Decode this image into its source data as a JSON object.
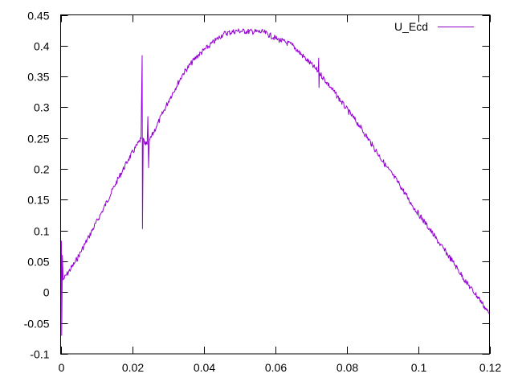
{
  "chart_data": {
    "type": "line",
    "title": "",
    "xlabel": "",
    "ylabel": "",
    "xlim": [
      0,
      0.12
    ],
    "ylim": [
      -0.1,
      0.45
    ],
    "grid": false,
    "legend_placement": "top-right",
    "x_ticks": [
      "0",
      "0.02",
      "0.04",
      "0.06",
      "0.08",
      "0.1",
      "0.12"
    ],
    "x_tick_values": [
      0,
      0.02,
      0.04,
      0.06,
      0.08,
      0.1,
      0.12
    ],
    "y_ticks": [
      "-0.1",
      "-0.05",
      "0",
      "0.05",
      "0.1",
      "0.15",
      "0.2",
      "0.25",
      "0.3",
      "0.35",
      "0.4",
      "0.45"
    ],
    "y_tick_values": [
      -0.1,
      -0.05,
      0,
      0.05,
      0.1,
      0.15,
      0.2,
      0.25,
      0.3,
      0.35,
      0.4,
      0.45
    ],
    "series": [
      {
        "name": "U_Ecd",
        "color": "#9400d3",
        "x": [
          0,
          0.0002,
          0.0003,
          0.0005,
          0.0007,
          0.0041,
          0.0079,
          0.0116,
          0.0153,
          0.019,
          0.0225,
          0.0228,
          0.0229,
          0.0231,
          0.0235,
          0.0242,
          0.0244,
          0.0246,
          0.0248,
          0.0268,
          0.0305,
          0.0343,
          0.038,
          0.0418,
          0.0455,
          0.0493,
          0.0568,
          0.0605,
          0.0648,
          0.0685,
          0.0721,
          0.0722,
          0.0723,
          0.0724,
          0.076,
          0.0798,
          0.0835,
          0.0873,
          0.091,
          0.0948,
          0.0985,
          0.1023,
          0.106,
          0.1098,
          0.1135,
          0.1173,
          0.12
        ],
        "y": [
          0.018,
          0.083,
          -0.07,
          0.06,
          0.02,
          0.049,
          0.09,
          0.131,
          0.175,
          0.216,
          0.249,
          0.384,
          0.103,
          0.25,
          0.24,
          0.24,
          0.285,
          0.202,
          0.245,
          0.269,
          0.314,
          0.355,
          0.382,
          0.401,
          0.419,
          0.424,
          0.422,
          0.411,
          0.401,
          0.379,
          0.358,
          0.38,
          0.332,
          0.356,
          0.329,
          0.299,
          0.271,
          0.238,
          0.205,
          0.175,
          0.14,
          0.11,
          0.079,
          0.049,
          0.016,
          -0.012,
          -0.036
        ]
      }
    ]
  }
}
